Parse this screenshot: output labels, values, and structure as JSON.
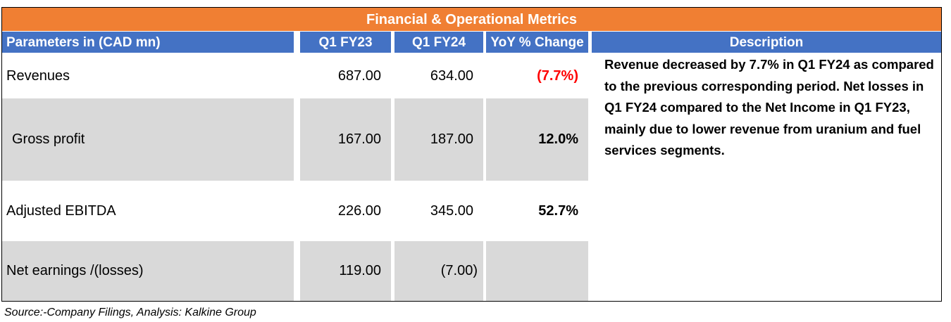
{
  "title": "Financial & Operational Metrics",
  "headers": {
    "param": "Parameters in (CAD mn)",
    "q1fy23": "Q1 FY23",
    "q1fy24": "Q1 FY24",
    "yoy": "YoY % Change",
    "desc": "Description"
  },
  "rows": [
    {
      "label": "Revenues",
      "q1fy23": "687.00",
      "q1fy24": "634.00",
      "yoy": "(7.7%)"
    },
    {
      "label": "Gross profit",
      "q1fy23": "167.00",
      "q1fy24": "187.00",
      "yoy": "12.0%"
    },
    {
      "label": "Adjusted EBITDA",
      "q1fy23": "226.00",
      "q1fy24": "345.00",
      "yoy": "52.7%"
    },
    {
      "label": "Net earnings /(losses)",
      "q1fy23": "119.00",
      "q1fy24": "(7.00)",
      "yoy": ""
    }
  ],
  "description": "Revenue decreased  by 7.7% in  Q1 FY24 as compared to the previous corresponding period. Net losses in  Q1 FY24 compared to the Net Income in Q1 FY23, mainly due to lower revenue from uranium and fuel services segments.",
  "source": "Source:-Company Filings, Analysis: Kalkine Group",
  "colors": {
    "banner": "#f07f33",
    "header": "#4472c4",
    "shade": "#d9d9d9",
    "negative": "#ff0000"
  }
}
